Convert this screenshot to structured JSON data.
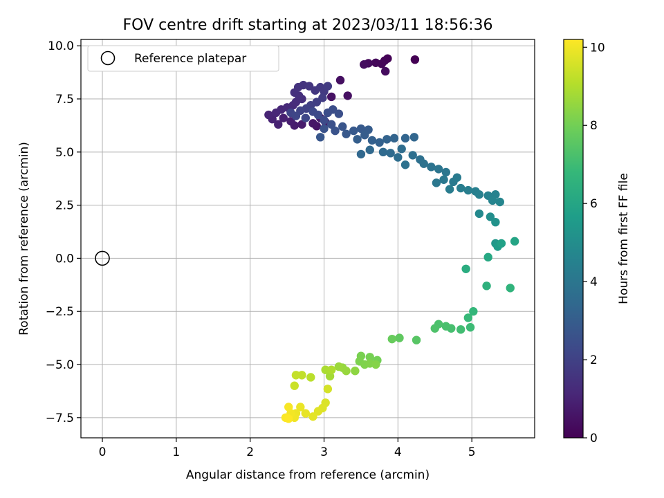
{
  "chart_data": {
    "type": "scatter",
    "title": "FOV centre drift starting at 2023/03/11 18:56:36",
    "xlabel": "Angular distance from reference (arcmin)",
    "ylabel": "Rotation from reference (arcmin)",
    "xlim": [
      -0.29,
      5.85
    ],
    "ylim": [
      -8.45,
      10.3
    ],
    "xticks": [
      0,
      1,
      2,
      3,
      4,
      5
    ],
    "yticks": [
      -7.5,
      -5.0,
      -2.5,
      0.0,
      2.5,
      5.0,
      7.5,
      10.0
    ],
    "ytick_labels": [
      "−7.5",
      "−5.0",
      "−2.5",
      "0.0",
      "2.5",
      "5.0",
      "7.5",
      "10.0"
    ],
    "grid": true,
    "legend": {
      "placement": "top-left",
      "entries": [
        "Reference platepar"
      ]
    },
    "reference_point": {
      "label": "Reference platepar",
      "x": 0,
      "y": 0,
      "marker": "open-circle"
    },
    "colorbar": {
      "label": "Hours from first FF file",
      "colormap": "viridis",
      "range": [
        0,
        10.2
      ],
      "ticks": [
        0,
        2,
        4,
        6,
        8,
        10
      ]
    },
    "colormap_stops": [
      "#440154",
      "#482878",
      "#3e4989",
      "#31688e",
      "#26828e",
      "#1f9e89",
      "#35b779",
      "#6ece58",
      "#b5de2b",
      "#fde725"
    ],
    "series": [
      {
        "columns": [
          "x",
          "y",
          "hours"
        ],
        "points": [
          [
            4.23,
            9.35,
            0.0
          ],
          [
            3.86,
            9.4,
            0.05
          ],
          [
            3.82,
            9.3,
            0.1
          ],
          [
            3.78,
            9.15,
            0.15
          ],
          [
            3.7,
            9.2,
            0.2
          ],
          [
            3.6,
            9.18,
            0.25
          ],
          [
            3.83,
            8.8,
            0.3
          ],
          [
            3.54,
            9.12,
            0.35
          ],
          [
            3.22,
            8.38,
            0.4
          ],
          [
            3.32,
            7.65,
            0.45
          ],
          [
            3.1,
            7.6,
            0.5
          ],
          [
            2.9,
            6.22,
            0.55
          ],
          [
            2.85,
            6.35,
            0.6
          ],
          [
            2.95,
            6.6,
            0.65
          ],
          [
            3.02,
            6.4,
            0.7
          ],
          [
            2.7,
            6.3,
            0.75
          ],
          [
            2.6,
            6.25,
            0.8
          ],
          [
            2.55,
            6.45,
            0.85
          ],
          [
            2.45,
            6.6,
            0.9
          ],
          [
            2.38,
            6.3,
            0.95
          ],
          [
            2.3,
            6.55,
            1.0
          ],
          [
            2.25,
            6.75,
            1.05
          ],
          [
            2.35,
            6.85,
            1.1
          ],
          [
            2.42,
            7.0,
            1.15
          ],
          [
            2.5,
            7.1,
            1.2
          ],
          [
            2.58,
            7.2,
            1.25
          ],
          [
            2.62,
            7.35,
            1.3
          ],
          [
            2.7,
            7.5,
            1.35
          ],
          [
            2.66,
            7.65,
            1.4
          ],
          [
            2.6,
            7.8,
            1.45
          ],
          [
            2.65,
            8.05,
            1.5
          ],
          [
            2.72,
            8.15,
            1.55
          ],
          [
            2.8,
            8.1,
            1.6
          ],
          [
            2.88,
            7.9,
            1.65
          ],
          [
            2.95,
            8.05,
            1.7
          ],
          [
            3.0,
            7.85,
            1.75
          ],
          [
            3.05,
            8.1,
            1.8
          ],
          [
            2.98,
            7.55,
            1.85
          ],
          [
            2.9,
            7.35,
            1.9
          ],
          [
            2.82,
            7.2,
            1.95
          ],
          [
            2.76,
            7.05,
            2.0
          ],
          [
            2.68,
            6.95,
            2.05
          ],
          [
            2.55,
            6.85,
            2.1
          ],
          [
            2.62,
            6.7,
            2.15
          ],
          [
            2.75,
            6.6,
            2.2
          ],
          [
            2.85,
            6.9,
            2.25
          ],
          [
            2.92,
            6.75,
            2.3
          ],
          [
            3.0,
            6.5,
            2.35
          ],
          [
            3.05,
            6.85,
            2.4
          ],
          [
            3.12,
            7.0,
            2.45
          ],
          [
            3.2,
            6.8,
            2.5
          ],
          [
            3.1,
            6.3,
            2.55
          ],
          [
            3.0,
            6.1,
            2.6
          ],
          [
            3.15,
            6.0,
            2.65
          ],
          [
            3.25,
            6.2,
            2.7
          ],
          [
            2.95,
            5.7,
            2.75
          ],
          [
            3.3,
            5.85,
            2.8
          ],
          [
            3.4,
            6.0,
            2.85
          ],
          [
            3.5,
            6.1,
            2.9
          ],
          [
            3.6,
            6.05,
            2.95
          ],
          [
            3.55,
            5.8,
            3.0
          ],
          [
            3.45,
            5.6,
            3.05
          ],
          [
            3.65,
            5.55,
            3.1
          ],
          [
            3.75,
            5.45,
            3.15
          ],
          [
            3.85,
            5.6,
            3.2
          ],
          [
            3.95,
            5.65,
            3.25
          ],
          [
            4.1,
            5.65,
            3.3
          ],
          [
            4.22,
            5.7,
            3.35
          ],
          [
            3.5,
            4.9,
            3.4
          ],
          [
            3.62,
            5.1,
            3.45
          ],
          [
            3.8,
            5.0,
            3.5
          ],
          [
            3.9,
            4.95,
            3.55
          ],
          [
            4.05,
            5.15,
            3.6
          ],
          [
            4.0,
            4.75,
            3.65
          ],
          [
            4.2,
            4.85,
            3.7
          ],
          [
            4.3,
            4.65,
            3.75
          ],
          [
            4.1,
            4.4,
            3.8
          ],
          [
            4.35,
            4.45,
            3.85
          ],
          [
            4.45,
            4.3,
            3.9
          ],
          [
            4.55,
            4.2,
            3.95
          ],
          [
            4.65,
            4.05,
            4.0
          ],
          [
            4.52,
            3.55,
            4.05
          ],
          [
            4.62,
            3.7,
            4.1
          ],
          [
            4.75,
            3.6,
            4.15
          ],
          [
            4.8,
            3.8,
            4.2
          ],
          [
            4.7,
            3.25,
            4.25
          ],
          [
            4.85,
            3.3,
            4.3
          ],
          [
            4.95,
            3.2,
            4.35
          ],
          [
            5.05,
            3.15,
            4.4
          ],
          [
            5.1,
            3.0,
            4.45
          ],
          [
            5.22,
            2.95,
            4.5
          ],
          [
            5.32,
            3.0,
            4.55
          ],
          [
            5.28,
            2.72,
            4.6
          ],
          [
            5.38,
            2.65,
            4.65
          ],
          [
            5.1,
            2.1,
            4.8
          ],
          [
            5.25,
            1.95,
            5.0
          ],
          [
            5.32,
            1.7,
            5.2
          ],
          [
            5.32,
            0.7,
            5.4
          ],
          [
            5.35,
            0.55,
            5.6
          ],
          [
            5.4,
            0.7,
            5.8
          ],
          [
            5.58,
            0.8,
            5.95
          ],
          [
            5.22,
            0.05,
            6.1
          ],
          [
            4.92,
            -0.5,
            6.3
          ],
          [
            5.2,
            -1.3,
            6.5
          ],
          [
            5.52,
            -1.4,
            6.6
          ],
          [
            5.02,
            -2.5,
            6.75
          ],
          [
            4.95,
            -2.8,
            6.85
          ],
          [
            4.98,
            -3.25,
            6.95
          ],
          [
            4.85,
            -3.35,
            7.05
          ],
          [
            4.72,
            -3.3,
            7.15
          ],
          [
            4.65,
            -3.2,
            7.2
          ],
          [
            4.55,
            -3.1,
            7.25
          ],
          [
            4.5,
            -3.3,
            7.3
          ],
          [
            4.25,
            -3.85,
            7.5
          ],
          [
            4.02,
            -3.75,
            7.65
          ],
          [
            3.92,
            -3.8,
            7.8
          ],
          [
            3.72,
            -4.8,
            8.0
          ],
          [
            3.62,
            -4.65,
            8.05
          ],
          [
            3.5,
            -4.6,
            8.1
          ],
          [
            3.48,
            -4.85,
            8.15
          ],
          [
            3.55,
            -5.0,
            8.2
          ],
          [
            3.62,
            -4.95,
            8.25
          ],
          [
            3.7,
            -5.0,
            8.3
          ],
          [
            3.42,
            -5.3,
            8.45
          ],
          [
            3.25,
            -5.15,
            8.55
          ],
          [
            3.3,
            -5.3,
            8.6
          ],
          [
            3.2,
            -5.1,
            8.65
          ],
          [
            3.08,
            -5.55,
            8.8
          ],
          [
            3.02,
            -5.25,
            8.9
          ],
          [
            3.1,
            -5.25,
            8.95
          ],
          [
            2.82,
            -5.6,
            9.15
          ],
          [
            2.7,
            -5.5,
            9.25
          ],
          [
            2.62,
            -5.5,
            9.3
          ],
          [
            2.6,
            -6.0,
            9.4
          ],
          [
            3.05,
            -6.15,
            9.55
          ],
          [
            3.02,
            -6.8,
            9.65
          ],
          [
            2.98,
            -7.05,
            9.7
          ],
          [
            2.92,
            -7.2,
            9.75
          ],
          [
            2.85,
            -7.45,
            9.8
          ],
          [
            2.75,
            -7.3,
            9.85
          ],
          [
            2.68,
            -7.0,
            9.9
          ],
          [
            2.62,
            -7.3,
            9.95
          ],
          [
            2.6,
            -7.5,
            10.0
          ],
          [
            2.55,
            -7.3,
            10.05
          ],
          [
            2.52,
            -7.0,
            10.1
          ],
          [
            2.48,
            -7.5,
            10.15
          ],
          [
            2.52,
            -7.55,
            10.2
          ]
        ]
      }
    ]
  }
}
